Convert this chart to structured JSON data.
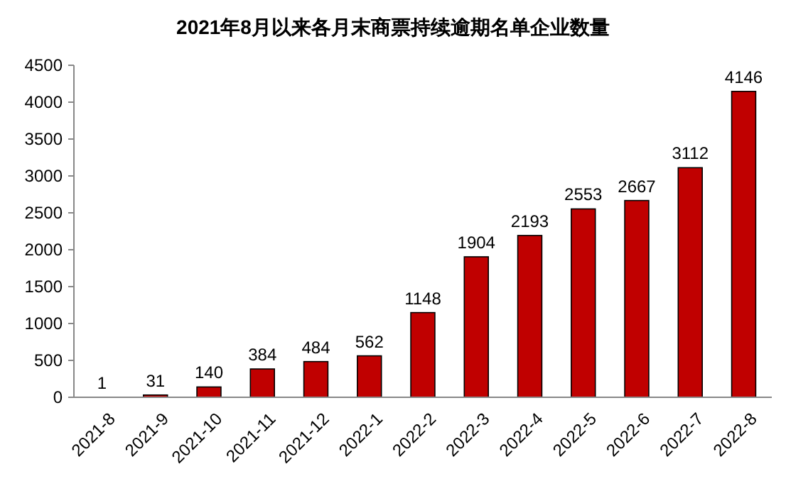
{
  "chart_data": {
    "type": "bar",
    "title": "2021年8月以来各月末商票持续逾期名单企业数量",
    "categories": [
      "2021-8",
      "2021-9",
      "2021-10",
      "2021-11",
      "2021-12",
      "2022-1",
      "2022-2",
      "2022-3",
      "2022-4",
      "2022-5",
      "2022-6",
      "2022-7",
      "2022-8"
    ],
    "values": [
      1,
      31,
      140,
      384,
      484,
      562,
      1148,
      1904,
      2193,
      2553,
      2667,
      3112,
      4146
    ],
    "color": "#c00000",
    "ylim": [
      0,
      4500
    ],
    "yticks": [
      0,
      500,
      1000,
      1500,
      2000,
      2500,
      3000,
      3500,
      4000,
      4500
    ],
    "grid": false,
    "data_labels": true
  }
}
